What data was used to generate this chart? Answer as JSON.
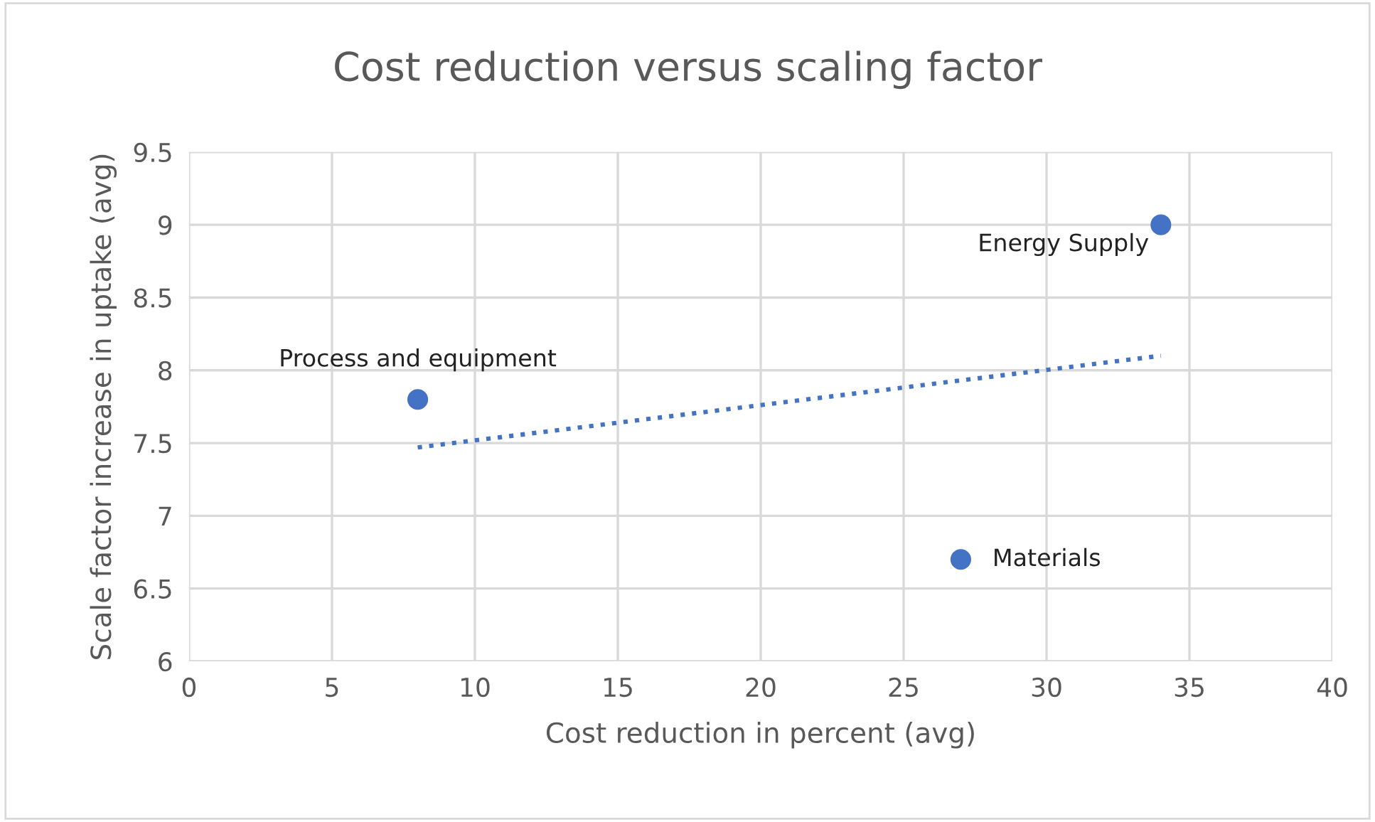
{
  "chart_data": {
    "type": "scatter",
    "title": "Cost reduction versus scaling factor",
    "xlabel": "Cost reduction in percent (avg)",
    "ylabel": "Scale factor increase in uptake (avg)",
    "xlim": [
      0,
      40
    ],
    "xticks": [
      0,
      5,
      10,
      15,
      20,
      25,
      30,
      35,
      40
    ],
    "ylim": [
      6,
      9.5
    ],
    "yticks": [
      6,
      {
        "value": 6.5,
        "label": "6.5"
      },
      7,
      {
        "value": 7.5,
        "label": "7.5"
      },
      8,
      {
        "value": 8.5,
        "label": "8.5"
      },
      9,
      {
        "value": 9.5,
        "label": "9.5"
      }
    ],
    "grid": true,
    "legend": false,
    "series": [
      {
        "color": "#4472c4",
        "marker": "circle",
        "x": [
          8,
          34,
          27
        ],
        "values": [
          7.8,
          9,
          6.7
        ]
      },
      {
        "type": "line",
        "color": "#4472c4",
        "line_style": "dotted",
        "marker": "none",
        "x": [
          8,
          34
        ],
        "values": [
          7.47,
          8.1
        ]
      }
    ],
    "annotations": [
      {
        "text": "Process and equipment",
        "x": 8,
        "y": 7.8
      },
      {
        "text": "Energy Supply",
        "x": 34,
        "y": 9
      },
      {
        "text": "Materials",
        "x": 27,
        "y": 6.7
      }
    ]
  }
}
